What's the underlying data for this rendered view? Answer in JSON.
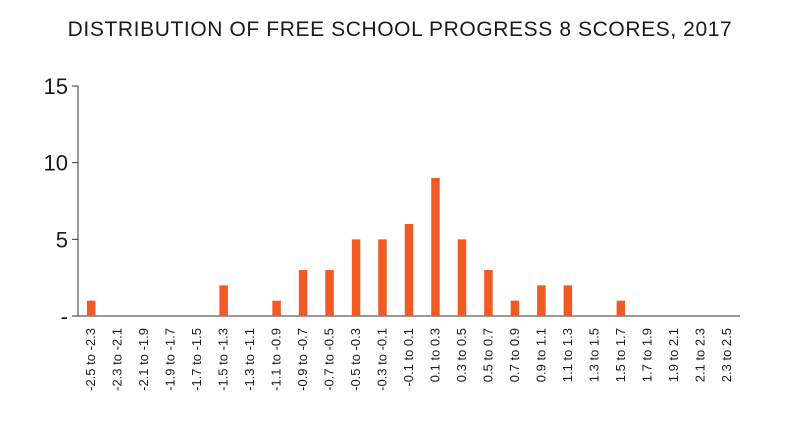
{
  "chart_data": {
    "type": "bar",
    "title": "DISTRIBUTION OF FREE SCHOOL PROGRESS 8 SCORES, 2017",
    "xlabel": "",
    "ylabel": "",
    "categories": [
      "-2.5 to -2.3",
      "-2.3 to -2.1",
      "-2.1 to -1.9",
      "-1.9 to -1.7",
      "-1.7 to -1.5",
      "-1.5 to -1.3",
      "-1.3 to -1.1",
      "-1.1 to -0.9",
      "-0.9 to -0.7",
      "-0.7 to -0.5",
      "-0.5 to -0.3",
      "-0.3 to -0.1",
      "-0.1 to 0.1",
      "0.1 to 0.3",
      "0.3 to 0.5",
      "0.5 to 0.7",
      "0.7 to 0.9",
      "0.9 to 1.1",
      "1.1 to 1.3",
      "1.3 to 1.5",
      "1.5 to 1.7",
      "1.7 to 1.9",
      "1.9 to 2.1",
      "2.1 to 2.3",
      "2.3 to 2.5"
    ],
    "values": [
      1,
      0,
      0,
      0,
      0,
      2,
      0,
      1,
      3,
      3,
      5,
      5,
      6,
      9,
      5,
      3,
      1,
      2,
      2,
      0,
      1,
      0,
      0,
      0,
      0
    ],
    "ylim": [
      0,
      15
    ],
    "yticks": [
      "-",
      "5",
      "10",
      "15"
    ],
    "grid": false,
    "bar_color": "#f15a22"
  }
}
